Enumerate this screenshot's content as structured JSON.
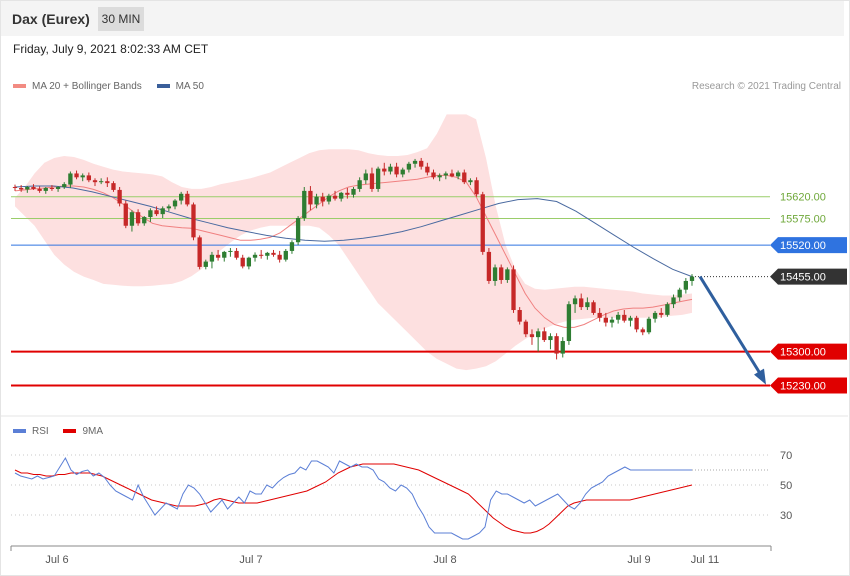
{
  "header": {
    "title": "Dax (Eurex)",
    "timeframe": "30 MIN"
  },
  "datetime": "Friday, July 9, 2021 8:02:33 AM CET",
  "legend": [
    {
      "label": "MA 20 + Bollinger Bands",
      "color": "#f28b82"
    },
    {
      "label": "MA 50",
      "color": "#3a5f9a"
    }
  ],
  "credit": "Research © 2021 Trading Central",
  "colors": {
    "bull": "#2e7d32",
    "bear": "#c62828",
    "band": "#fde0e0",
    "ma20": "#f08080",
    "ma50": "#4a6aa0",
    "support": "#e00000",
    "resistance": "#2f73e0",
    "projection": "#2f5f9e",
    "rsi": "#5b7fd6",
    "rsi_ma": "#e00000",
    "level_green": "#9acd6a"
  },
  "chart_data": [
    {
      "type": "candlestick",
      "ylim": [
        15163,
        15830
      ],
      "x_ticks": [
        "Jul 6",
        "Jul 7",
        "Jul 8",
        "Jul 9",
        "Jul 11"
      ],
      "levels": [
        {
          "value": 15620.0,
          "label": "15620.00",
          "kind": "green"
        },
        {
          "value": 15575.0,
          "label": "15575.00",
          "kind": "green"
        },
        {
          "value": 15520.0,
          "label": "15520.00",
          "kind": "resistance"
        },
        {
          "value": 15455.0,
          "label": "15455.00",
          "kind": "last"
        },
        {
          "value": 15300.0,
          "label": "15300.00",
          "kind": "support"
        },
        {
          "value": 15230.0,
          "label": "15230.00",
          "kind": "support"
        }
      ],
      "candles": [
        [
          15640,
          15645,
          15632,
          15638
        ],
        [
          15638,
          15644,
          15630,
          15635
        ],
        [
          15635,
          15642,
          15628,
          15640
        ],
        [
          15640,
          15646,
          15634,
          15636
        ],
        [
          15636,
          15641,
          15628,
          15632
        ],
        [
          15632,
          15640,
          15626,
          15638
        ],
        [
          15638,
          15644,
          15632,
          15636
        ],
        [
          15636,
          15642,
          15630,
          15640
        ],
        [
          15640,
          15650,
          15636,
          15646
        ],
        [
          15645,
          15672,
          15638,
          15668
        ],
        [
          15668,
          15674,
          15656,
          15660
        ],
        [
          15660,
          15668,
          15652,
          15664
        ],
        [
          15664,
          15670,
          15650,
          15654
        ],
        [
          15654,
          15658,
          15642,
          15650
        ],
        [
          15650,
          15658,
          15646,
          15652
        ],
        [
          15652,
          15660,
          15640,
          15648
        ],
        [
          15648,
          15652,
          15630,
          15634
        ],
        [
          15634,
          15640,
          15600,
          15606
        ],
        [
          15606,
          15612,
          15555,
          15560
        ],
        [
          15560,
          15592,
          15548,
          15588
        ],
        [
          15588,
          15594,
          15560,
          15565
        ],
        [
          15565,
          15580,
          15560,
          15578
        ],
        [
          15578,
          15596,
          15568,
          15592
        ],
        [
          15592,
          15600,
          15580,
          15584
        ],
        [
          15584,
          15600,
          15576,
          15596
        ],
        [
          15596,
          15604,
          15590,
          15600
        ],
        [
          15600,
          15615,
          15594,
          15612
        ],
        [
          15612,
          15630,
          15604,
          15626
        ],
        [
          15626,
          15632,
          15600,
          15604
        ],
        [
          15604,
          15608,
          15530,
          15536
        ],
        [
          15536,
          15540,
          15470,
          15475
        ],
        [
          15475,
          15490,
          15470,
          15486
        ],
        [
          15486,
          15506,
          15472,
          15500
        ],
        [
          15500,
          15510,
          15488,
          15494
        ],
        [
          15494,
          15508,
          15486,
          15506
        ],
        [
          15506,
          15514,
          15496,
          15508
        ],
        [
          15508,
          15514,
          15490,
          15494
        ],
        [
          15494,
          15500,
          15472,
          15476
        ],
        [
          15476,
          15496,
          15470,
          15494
        ],
        [
          15494,
          15505,
          15486,
          15500
        ],
        [
          15500,
          15510,
          15492,
          15498
        ],
        [
          15498,
          15506,
          15490,
          15504
        ],
        [
          15504,
          15510,
          15496,
          15500
        ],
        [
          15500,
          15508,
          15484,
          15490
        ],
        [
          15490,
          15512,
          15486,
          15508
        ],
        [
          15508,
          15530,
          15502,
          15526
        ],
        [
          15526,
          15580,
          15520,
          15576
        ],
        [
          15576,
          15640,
          15570,
          15632
        ],
        [
          15632,
          15642,
          15592,
          15604
        ],
        [
          15604,
          15626,
          15596,
          15620
        ],
        [
          15620,
          15628,
          15600,
          15610
        ],
        [
          15610,
          15626,
          15604,
          15622
        ],
        [
          15622,
          15632,
          15612,
          15616
        ],
        [
          15616,
          15630,
          15610,
          15628
        ],
        [
          15628,
          15638,
          15616,
          15624
        ],
        [
          15624,
          15640,
          15618,
          15636
        ],
        [
          15636,
          15660,
          15630,
          15654
        ],
        [
          15654,
          15676,
          15646,
          15668
        ],
        [
          15668,
          15680,
          15630,
          15636
        ],
        [
          15636,
          15682,
          15630,
          15678
        ],
        [
          15678,
          15690,
          15664,
          15672
        ],
        [
          15672,
          15688,
          15666,
          15682
        ],
        [
          15682,
          15690,
          15660,
          15666
        ],
        [
          15666,
          15680,
          15660,
          15676
        ],
        [
          15676,
          15692,
          15670,
          15688
        ],
        [
          15688,
          15698,
          15680,
          15694
        ],
        [
          15694,
          15700,
          15676,
          15682
        ],
        [
          15682,
          15690,
          15664,
          15670
        ],
        [
          15670,
          15676,
          15656,
          15660
        ],
        [
          15660,
          15668,
          15652,
          15664
        ],
        [
          15664,
          15672,
          15656,
          15668
        ],
        [
          15668,
          15676,
          15660,
          15662
        ],
        [
          15662,
          15674,
          15656,
          15670
        ],
        [
          15670,
          15676,
          15646,
          15650
        ],
        [
          15650,
          15658,
          15644,
          15654
        ],
        [
          15654,
          15660,
          15620,
          15625
        ],
        [
          15625,
          15630,
          15500,
          15506
        ],
        [
          15506,
          15514,
          15440,
          15446
        ],
        [
          15446,
          15480,
          15436,
          15474
        ],
        [
          15474,
          15480,
          15440,
          15448
        ],
        [
          15448,
          15474,
          15442,
          15470
        ],
        [
          15470,
          15478,
          15380,
          15386
        ],
        [
          15386,
          15392,
          15356,
          15362
        ],
        [
          15362,
          15366,
          15330,
          15336
        ],
        [
          15336,
          15346,
          15314,
          15330
        ],
        [
          15330,
          15348,
          15300,
          15342
        ],
        [
          15342,
          15350,
          15320,
          15324
        ],
        [
          15324,
          15338,
          15305,
          15332
        ],
        [
          15332,
          15338,
          15284,
          15296
        ],
        [
          15296,
          15330,
          15288,
          15322
        ],
        [
          15322,
          15404,
          15314,
          15398
        ],
        [
          15398,
          15416,
          15380,
          15410
        ],
        [
          15410,
          15420,
          15386,
          15392
        ],
        [
          15392,
          15412,
          15386,
          15402
        ],
        [
          15402,
          15406,
          15376,
          15380
        ],
        [
          15380,
          15390,
          15362,
          15370
        ],
        [
          15370,
          15380,
          15352,
          15360
        ],
        [
          15360,
          15372,
          15350,
          15366
        ],
        [
          15366,
          15382,
          15358,
          15376
        ],
        [
          15376,
          15386,
          15360,
          15364
        ],
        [
          15364,
          15374,
          15352,
          15370
        ],
        [
          15370,
          15374,
          15340,
          15346
        ],
        [
          15346,
          15350,
          15334,
          15340
        ],
        [
          15340,
          15372,
          15336,
          15368
        ],
        [
          15368,
          15384,
          15360,
          15380
        ],
        [
          15380,
          15390,
          15370,
          15376
        ],
        [
          15376,
          15402,
          15372,
          15398
        ],
        [
          15398,
          15418,
          15390,
          15412
        ],
        [
          15412,
          15432,
          15404,
          15428
        ],
        [
          15428,
          15452,
          15420,
          15446
        ],
        [
          15446,
          15460,
          15436,
          15455
        ]
      ],
      "ma20": [
        15632,
        15634,
        15636,
        15638,
        15640,
        15642,
        15642,
        15640,
        15635,
        15628,
        15618,
        15605,
        15590,
        15578,
        15565,
        15560,
        15558,
        15556,
        15555,
        15550,
        15545,
        15540,
        15535,
        15530,
        15530,
        15532,
        15536,
        15545,
        15560,
        15575,
        15590,
        15605,
        15620,
        15632,
        15640,
        15644,
        15646,
        15648,
        15650,
        15652,
        15654,
        15656,
        15660,
        15664,
        15664,
        15660,
        15650,
        15620,
        15580,
        15540,
        15500,
        15460,
        15420,
        15390,
        15370,
        15356,
        15350,
        15350,
        15356,
        15366,
        15376,
        15384,
        15388,
        15390,
        15390,
        15392,
        15396,
        15400,
        15404,
        15408
      ],
      "bb_upper": [
        15618,
        15640,
        15668,
        15690,
        15700,
        15704,
        15702,
        15696,
        15688,
        15682,
        15676,
        15672,
        15670,
        15668,
        15666,
        15662,
        15650,
        15640,
        15636,
        15636,
        15640,
        15646,
        15650,
        15654,
        15658,
        15664,
        15670,
        15680,
        15690,
        15700,
        15710,
        15716,
        15718,
        15718,
        15718,
        15716,
        15710,
        15706,
        15704,
        15704,
        15706,
        15712,
        15720,
        15750,
        15790,
        15790,
        15790,
        15780,
        15700,
        15600,
        15520,
        15470,
        15440,
        15430,
        15428,
        15430,
        15432,
        15434,
        15434,
        15432,
        15430,
        15428,
        15426,
        15424,
        15420,
        15418,
        15416,
        15416,
        15418,
        15420
      ],
      "bb_lower": [
        15600,
        15580,
        15560,
        15530,
        15500,
        15480,
        15465,
        15455,
        15448,
        15440,
        15438,
        15436,
        15435,
        15435,
        15436,
        15438,
        15440,
        15446,
        15456,
        15470,
        15490,
        15510,
        15526,
        15540,
        15550,
        15556,
        15560,
        15560,
        15560,
        15560,
        15560,
        15556,
        15540,
        15520,
        15490,
        15460,
        15430,
        15400,
        15380,
        15360,
        15340,
        15320,
        15300,
        15285,
        15275,
        15265,
        15262,
        15265,
        15270,
        15280,
        15296,
        15312,
        15326,
        15338,
        15348,
        15356,
        15362,
        15366,
        15368,
        15370,
        15370,
        15370,
        15370,
        15370,
        15370,
        15370,
        15372,
        15374,
        15376,
        15380
      ],
      "ma50": [
        15640,
        15642,
        15642,
        15638,
        15630,
        15620,
        15610,
        15600,
        15588,
        15576,
        15566,
        15556,
        15548,
        15540,
        15534,
        15530,
        15528,
        15530,
        15534,
        15540,
        15548,
        15558,
        15570,
        15582,
        15594,
        15606,
        15614,
        15616,
        15610,
        15590,
        15565,
        15540,
        15515,
        15492,
        15470,
        15455
      ]
    },
    {
      "type": "line",
      "title": "RSI",
      "ylim": [
        10,
        80
      ],
      "y_ticks": [
        70,
        50,
        30
      ],
      "series": [
        {
          "name": "RSI",
          "values": [
            58,
            56,
            55,
            54,
            56,
            54,
            55,
            56,
            62,
            68,
            60,
            57,
            59,
            60,
            56,
            58,
            55,
            50,
            46,
            44,
            42,
            40,
            50,
            42,
            36,
            30,
            34,
            38,
            36,
            34,
            44,
            50,
            48,
            44,
            38,
            32,
            36,
            40,
            34,
            38,
            42,
            38,
            46,
            44,
            44,
            50,
            48,
            52,
            55,
            57,
            58,
            62,
            60,
            66,
            66,
            64,
            62,
            58,
            66,
            64,
            62,
            64,
            62,
            62,
            60,
            54,
            52,
            48,
            46,
            50,
            48,
            44,
            36,
            30,
            22,
            18,
            18,
            18,
            18,
            16,
            14,
            14,
            16,
            18,
            22,
            40,
            46,
            44,
            44,
            42,
            40,
            38,
            40,
            36,
            38,
            40,
            42,
            44,
            40,
            36,
            34,
            38,
            44,
            48,
            50,
            52,
            56,
            58,
            60,
            62,
            60,
            60,
            60,
            60,
            60,
            60,
            60,
            60,
            60,
            60,
            60,
            60
          ]
        },
        {
          "name": "9MA",
          "values": [
            60,
            58,
            58,
            57,
            57,
            56,
            56,
            57,
            57,
            58,
            58,
            58,
            58,
            57,
            56,
            54,
            52,
            50,
            48,
            46,
            44,
            42,
            40,
            39,
            38,
            37,
            36,
            36,
            36,
            36,
            37,
            38,
            40,
            41,
            40,
            39,
            38,
            38,
            38,
            38,
            39,
            40,
            41,
            42,
            43,
            44,
            45,
            46,
            48,
            50,
            52,
            55,
            58,
            60,
            62,
            63,
            64,
            64,
            64,
            64,
            64,
            64,
            63,
            62,
            61,
            60,
            58,
            56,
            54,
            52,
            50,
            48,
            46,
            44,
            40,
            36,
            32,
            28,
            25,
            22,
            20,
            19,
            18,
            18,
            19,
            21,
            24,
            28,
            32,
            36,
            38,
            39,
            40,
            40,
            40,
            40,
            40,
            40,
            40,
            40,
            41,
            42,
            43,
            44,
            45,
            46,
            47,
            48,
            49,
            50
          ]
        }
      ]
    }
  ]
}
